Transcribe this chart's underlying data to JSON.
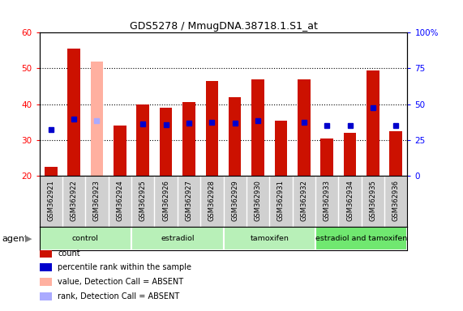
{
  "title": "GDS5278 / MmugDNA.38718.1.S1_at",
  "samples": [
    "GSM362921",
    "GSM362922",
    "GSM362923",
    "GSM362924",
    "GSM362925",
    "GSM362926",
    "GSM362927",
    "GSM362928",
    "GSM362929",
    "GSM362930",
    "GSM362931",
    "GSM362932",
    "GSM362933",
    "GSM362934",
    "GSM362935",
    "GSM362936"
  ],
  "count_values": [
    22.5,
    55.5,
    52.0,
    34.0,
    40.0,
    39.0,
    40.5,
    46.5,
    42.0,
    47.0,
    35.5,
    47.0,
    30.5,
    32.0,
    49.5,
    32.5
  ],
  "rank_values": [
    32.5,
    39.5,
    38.5,
    null,
    36.0,
    35.5,
    36.5,
    37.5,
    36.5,
    38.5,
    null,
    37.5,
    35.0,
    35.0,
    47.5,
    35.0
  ],
  "absent": [
    false,
    false,
    true,
    false,
    false,
    false,
    false,
    false,
    false,
    false,
    false,
    false,
    false,
    false,
    false,
    false
  ],
  "groups": [
    {
      "label": "control",
      "start": 0,
      "end": 3,
      "color": "#b8f0b8"
    },
    {
      "label": "estradiol",
      "start": 4,
      "end": 7,
      "color": "#b8f0b8"
    },
    {
      "label": "tamoxifen",
      "start": 8,
      "end": 11,
      "color": "#b8f0b8"
    },
    {
      "label": "estradiol and tamoxifen",
      "start": 12,
      "end": 15,
      "color": "#70e870"
    }
  ],
  "bar_width": 0.55,
  "count_color": "#cc1100",
  "count_absent_color": "#ffb0a0",
  "rank_color": "#0000cc",
  "rank_absent_color": "#aaaaff",
  "ylim_left": [
    20,
    60
  ],
  "ylim_right": [
    0,
    100
  ],
  "yticks_left": [
    20,
    30,
    40,
    50,
    60
  ],
  "yticks_right": [
    0,
    25,
    50,
    75,
    100
  ],
  "background_color": "#ffffff",
  "plot_bg_color": "#ffffff",
  "grid_color": "black",
  "agent_label": "agent"
}
